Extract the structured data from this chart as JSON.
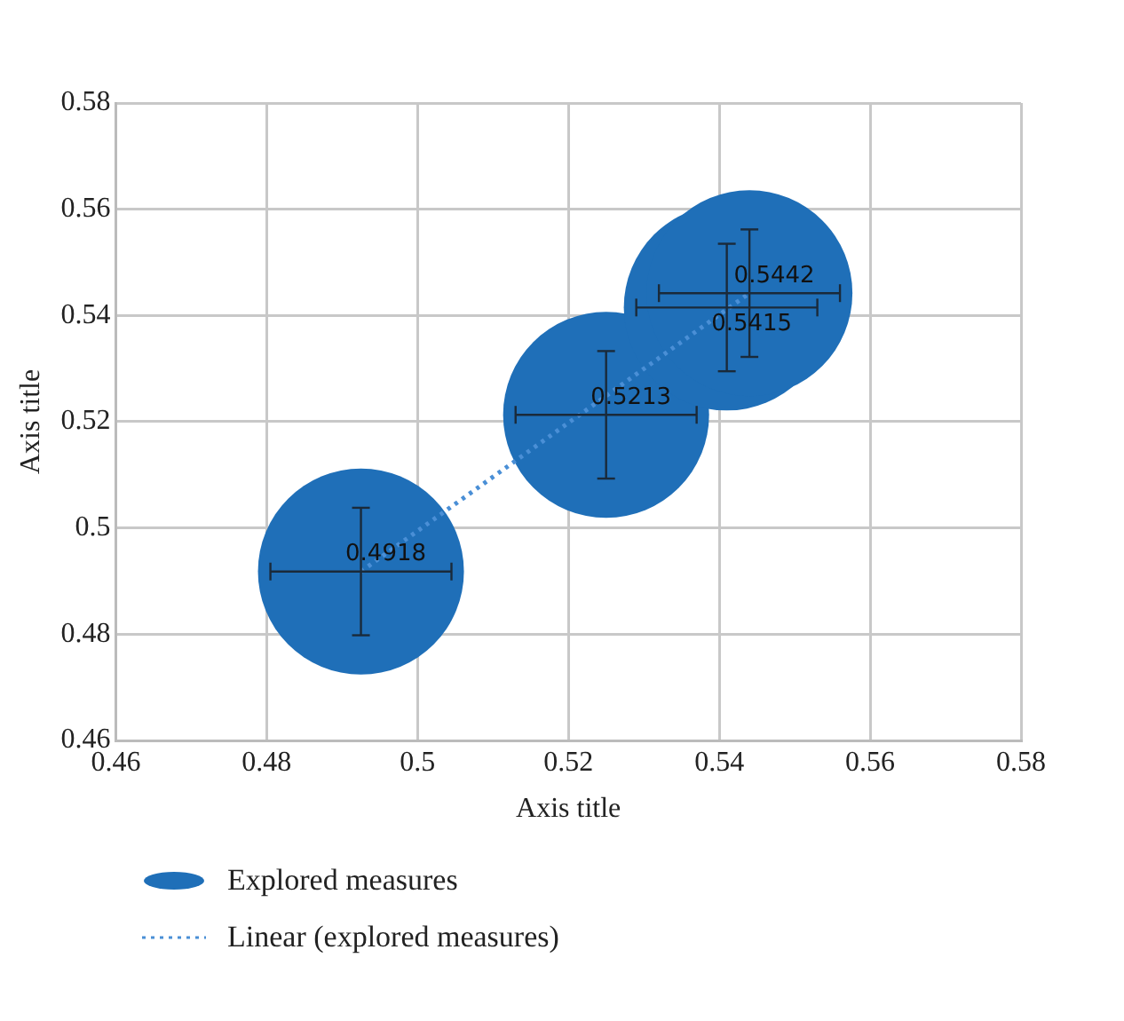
{
  "chart_data": {
    "type": "bubble",
    "xlabel": "Axis title",
    "ylabel": "Axis title",
    "xlim": [
      0.46,
      0.58
    ],
    "xticks": [
      0.46,
      0.48,
      0.5,
      0.52,
      0.54,
      0.56,
      0.58
    ],
    "ylim": [
      0.46,
      0.58
    ],
    "yticks": [
      0.46,
      0.48,
      0.5,
      0.52,
      0.54,
      0.56,
      0.58
    ],
    "grid": true,
    "legend": "bottom",
    "series": [
      {
        "name": "Explored measures",
        "type": "bubble",
        "color": "#1f6fb8",
        "x": [
          0.4925,
          0.525,
          0.541,
          0.544
        ],
        "values": [
          0.4918,
          0.5213,
          0.5415,
          0.5442
        ],
        "sizes": [
          1,
          1,
          1,
          1
        ],
        "value_labels": [
          "0.4918",
          "0.5213",
          "0.5415",
          "0.5442"
        ],
        "errors": [
          0.012,
          0.012,
          0.012,
          0.012
        ],
        "xerrors": [
          0.012,
          0.012,
          0.012,
          0.012
        ]
      },
      {
        "name": "Linear (explored measures)",
        "type": "line",
        "color": "#4a8fd6",
        "line_style": "dotted",
        "marker": "none",
        "x": [
          0.4925,
          0.544
        ],
        "values": [
          0.4918,
          0.5442
        ]
      }
    ]
  }
}
